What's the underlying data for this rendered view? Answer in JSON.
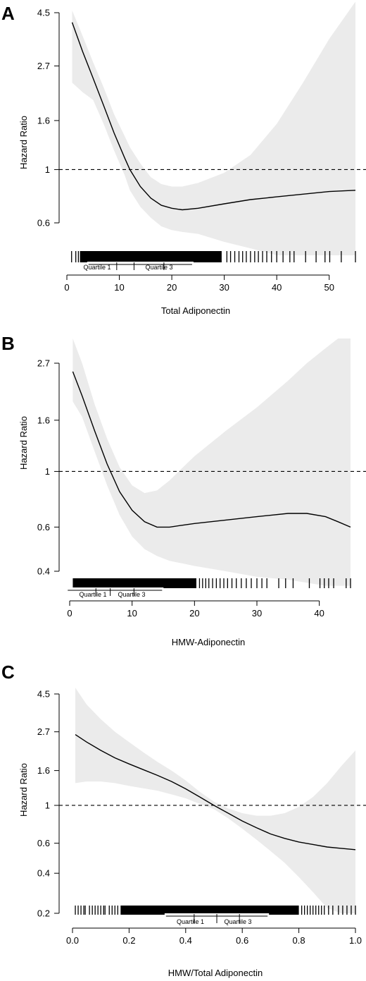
{
  "chart_data": [
    {
      "panel": "A",
      "type": "line",
      "xlabel": "Total Adiponectin",
      "ylabel": "Hazard Ratio",
      "x_ticks": [
        0,
        10,
        20,
        30,
        40,
        50
      ],
      "y_ticks": [
        0.6,
        1,
        1.6,
        2.7,
        4.5
      ],
      "y_scale": "log",
      "xlim": [
        0,
        55
      ],
      "ylim": [
        0.6,
        4.5
      ],
      "reference_line": 1,
      "quartile_labels": [
        "Quartile 1",
        "Quartile 3"
      ],
      "quartile_marks": [
        9.5,
        12.8,
        18.5
      ],
      "series": [
        {
          "x": [
            1,
            3,
            5,
            7,
            9,
            11,
            12,
            14,
            16,
            18,
            20,
            22,
            25,
            30,
            35,
            40,
            45,
            50,
            55
          ],
          "y": [
            4.1,
            3.1,
            2.4,
            1.85,
            1.42,
            1.12,
            1.0,
            0.85,
            0.76,
            0.71,
            0.69,
            0.68,
            0.69,
            0.72,
            0.75,
            0.77,
            0.79,
            0.81,
            0.82
          ]
        }
      ],
      "band_upper": [
        4.6,
        3.6,
        2.8,
        2.2,
        1.7,
        1.38,
        1.24,
        1.06,
        0.93,
        0.87,
        0.85,
        0.85,
        0.88,
        0.97,
        1.15,
        1.55,
        2.3,
        3.5,
        5.0
      ],
      "band_lower": [
        2.3,
        2.1,
        1.95,
        1.55,
        1.2,
        0.95,
        0.82,
        0.7,
        0.63,
        0.58,
        0.56,
        0.55,
        0.54,
        0.5,
        0.47,
        0.43,
        0.38,
        0.34,
        0.3
      ],
      "rug_dense_range": [
        2.5,
        29.5
      ],
      "rug_sparse": [
        0.9,
        1.7,
        2.2,
        30.5,
        31.2,
        32,
        32.8,
        33.5,
        34.2,
        35,
        35.8,
        36.5,
        37.3,
        38.1,
        39,
        40,
        41.2,
        42.5,
        43.3,
        45.5,
        47.5,
        49.2,
        50.1,
        52.3,
        55
      ]
    },
    {
      "panel": "B",
      "type": "line",
      "xlabel": "HMW-Adiponectin",
      "ylabel": "Hazard Ratio",
      "x_ticks": [
        0,
        10,
        20,
        30,
        40
      ],
      "y_ticks": [
        0.4,
        0.6,
        1,
        1.6,
        2.7
      ],
      "y_scale": "log",
      "xlim": [
        0,
        45
      ],
      "ylim": [
        0.4,
        2.7
      ],
      "reference_line": 1,
      "quartile_labels": [
        "Quartile 1",
        "Quartile 3"
      ],
      "quartile_marks": [
        4.2,
        6.5,
        10.3
      ],
      "series": [
        {
          "x": [
            0.5,
            2,
            4,
            6,
            8,
            10,
            12,
            14,
            16,
            18,
            20,
            25,
            30,
            35,
            38,
            41,
            43,
            45
          ],
          "y": [
            2.5,
            2.0,
            1.45,
            1.07,
            0.83,
            0.7,
            0.63,
            0.6,
            0.6,
            0.61,
            0.62,
            0.64,
            0.66,
            0.68,
            0.68,
            0.66,
            0.63,
            0.6
          ]
        }
      ],
      "band_upper": [
        3.5,
        2.7,
        1.85,
        1.35,
        1.04,
        0.88,
        0.82,
        0.84,
        0.92,
        1.03,
        1.15,
        1.45,
        1.8,
        2.3,
        2.7,
        3.1,
        3.4,
        3.7
      ],
      "band_lower": [
        1.9,
        1.65,
        1.2,
        0.88,
        0.67,
        0.55,
        0.49,
        0.46,
        0.44,
        0.43,
        0.42,
        0.4,
        0.38,
        0.37,
        0.36,
        0.35,
        0.35,
        0.35
      ],
      "rug_dense_range": [
        0.5,
        20.3
      ],
      "rug_sparse": [
        20.8,
        21.3,
        21.8,
        22.3,
        22.9,
        23.5,
        24.1,
        24.7,
        25.3,
        26,
        26.7,
        27.5,
        28.3,
        29.1,
        30,
        30.8,
        31.6,
        33.5,
        34.6,
        35.8,
        38.4,
        40.1,
        40.8,
        41.5,
        42.3,
        44.3,
        45
      ]
    },
    {
      "panel": "C",
      "type": "line",
      "xlabel": "HMW/Total Adiponectin",
      "ylabel": "Hazard Ratio",
      "x_ticks": [
        0.0,
        0.2,
        0.4,
        0.6,
        0.8,
        1.0
      ],
      "y_ticks": [
        0.2,
        0.4,
        0.6,
        1,
        1.6,
        2.7,
        4.5
      ],
      "y_scale": "log",
      "xlim": [
        0,
        1
      ],
      "ylim": [
        0.2,
        4.5
      ],
      "reference_line": 1,
      "quartile_labels": [
        "Quartile 1",
        "Quartile 3"
      ],
      "quartile_marks": [
        0.43,
        0.51,
        0.59
      ],
      "series": [
        {
          "x": [
            0.01,
            0.05,
            0.1,
            0.15,
            0.2,
            0.25,
            0.3,
            0.35,
            0.4,
            0.45,
            0.5,
            0.55,
            0.6,
            0.65,
            0.7,
            0.75,
            0.8,
            0.85,
            0.9,
            0.95,
            1.0
          ],
          "y": [
            2.6,
            2.35,
            2.1,
            1.9,
            1.75,
            1.62,
            1.5,
            1.38,
            1.25,
            1.12,
            1.0,
            0.9,
            0.81,
            0.74,
            0.68,
            0.64,
            0.61,
            0.59,
            0.57,
            0.56,
            0.55
          ]
        }
      ],
      "band_upper": [
        4.9,
        3.9,
        3.2,
        2.7,
        2.35,
        2.05,
        1.8,
        1.6,
        1.4,
        1.2,
        1.05,
        0.96,
        0.9,
        0.87,
        0.87,
        0.9,
        0.98,
        1.12,
        1.35,
        1.7,
        2.1
      ],
      "band_lower": [
        1.35,
        1.38,
        1.38,
        1.35,
        1.3,
        1.26,
        1.22,
        1.16,
        1.1,
        1.02,
        0.95,
        0.84,
        0.73,
        0.63,
        0.54,
        0.46,
        0.38,
        0.31,
        0.25,
        0.2,
        0.16
      ],
      "rug_dense_range": [
        0.17,
        0.8
      ],
      "rug_sparse": [
        0.01,
        0.02,
        0.03,
        0.04,
        0.045,
        0.06,
        0.07,
        0.08,
        0.09,
        0.1,
        0.11,
        0.115,
        0.13,
        0.14,
        0.15,
        0.16,
        0.81,
        0.82,
        0.83,
        0.84,
        0.85,
        0.86,
        0.87,
        0.88,
        0.89,
        0.905,
        0.92,
        0.94,
        0.955,
        0.97,
        0.985,
        1.0
      ]
    }
  ]
}
